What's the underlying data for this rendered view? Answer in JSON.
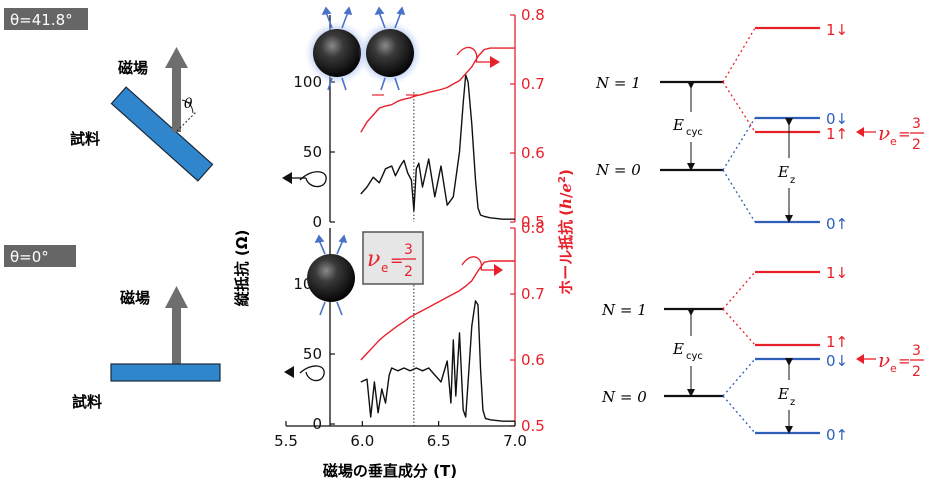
{
  "colors": {
    "red": "#e8202a",
    "blue": "#2f5fb8",
    "black": "#111111",
    "sample": "#2f86cc",
    "arrow_gray": "#6e6e6e",
    "tag_bg": "#666666"
  },
  "left": {
    "angle_top": "θ=41.8°",
    "angle_bottom": "θ=0°",
    "field_label": "磁場",
    "sample_label": "試料",
    "theta": "θ"
  },
  "axes": {
    "xlabel": "磁場の垂直成分 (T)",
    "ylabel_left": "縦抵抗 (Ω)",
    "ylabel_right_text": "ホール抵抗",
    "ylabel_right_unit_h": "h",
    "ylabel_right_unit_e": "e",
    "ylabel_right_unit_sup": "2",
    "nu_box": {
      "nu": "ν",
      "sub": "e",
      "eq": "=",
      "num": "3",
      "den": "2"
    }
  },
  "chart_data": [
    {
      "type": "line",
      "panel": "top",
      "xlim": [
        5.5,
        7.0
      ],
      "ylim_left": [
        0,
        120
      ],
      "ylim_right": [
        0.5,
        0.8
      ],
      "x_ticks": [
        "5.5",
        "6.0",
        "6.5",
        "7.0"
      ],
      "yleft_ticks": [
        "0",
        "50",
        "100"
      ],
      "yright_ticks": [
        "0.5",
        "0.6",
        "0.7",
        "0.8"
      ],
      "marker_x": 6.18,
      "series": [
        {
          "axis": "left",
          "color": "#111111",
          "x": [
            5.75,
            5.8,
            5.85,
            5.9,
            5.95,
            6.0,
            6.03,
            6.07,
            6.1,
            6.13,
            6.16,
            6.18,
            6.2,
            6.22,
            6.25,
            6.3,
            6.35,
            6.4,
            6.45,
            6.5,
            6.55,
            6.58,
            6.6,
            6.62,
            6.65,
            6.68,
            6.7,
            6.72,
            6.75,
            6.8,
            6.9,
            7.0
          ],
          "y": [
            20,
            25,
            32,
            28,
            38,
            40,
            33,
            40,
            44,
            35,
            30,
            8,
            38,
            42,
            25,
            45,
            18,
            40,
            12,
            18,
            50,
            85,
            105,
            100,
            70,
            30,
            10,
            5,
            4,
            3,
            2,
            2
          ]
        },
        {
          "axis": "right",
          "color": "#e8202a",
          "x": [
            5.75,
            5.8,
            5.85,
            5.9,
            5.95,
            6.0,
            6.05,
            6.1,
            6.15,
            6.2,
            6.25,
            6.3,
            6.35,
            6.4,
            6.45,
            6.5,
            6.55,
            6.6,
            6.65,
            6.7,
            6.75,
            6.8,
            6.9,
            7.0
          ],
          "y": [
            0.63,
            0.645,
            0.655,
            0.665,
            0.668,
            0.67,
            0.675,
            0.678,
            0.68,
            0.683,
            0.685,
            0.688,
            0.69,
            0.692,
            0.695,
            0.7,
            0.705,
            0.715,
            0.725,
            0.74,
            0.75,
            0.752,
            0.752,
            0.752
          ]
        }
      ]
    },
    {
      "type": "line",
      "panel": "bottom",
      "xlim": [
        5.5,
        7.0
      ],
      "ylim_left": [
        0,
        120
      ],
      "ylim_right": [
        0.5,
        0.8
      ],
      "x_ticks": [
        "5.5",
        "6.0",
        "6.5",
        "7.0"
      ],
      "yleft_ticks": [
        "0",
        "50",
        "100"
      ],
      "yright_ticks": [
        "0.5",
        "0.6",
        "0.7",
        "0.8"
      ],
      "marker_x": 6.18,
      "series": [
        {
          "axis": "left",
          "color": "#111111",
          "x": [
            5.75,
            5.8,
            5.83,
            5.86,
            5.89,
            5.92,
            5.95,
            5.98,
            6.0,
            6.05,
            6.1,
            6.15,
            6.2,
            6.25,
            6.3,
            6.35,
            6.4,
            6.45,
            6.48,
            6.5,
            6.52,
            6.55,
            6.58,
            6.6,
            6.62,
            6.65,
            6.68,
            6.7,
            6.72,
            6.74,
            6.76,
            6.8,
            6.9,
            7.0
          ],
          "y": [
            30,
            32,
            5,
            30,
            8,
            25,
            15,
            35,
            40,
            38,
            40,
            38,
            40,
            38,
            40,
            35,
            30,
            45,
            15,
            60,
            20,
            65,
            10,
            5,
            30,
            70,
            88,
            85,
            40,
            10,
            4,
            3,
            2,
            2
          ]
        },
        {
          "axis": "right",
          "color": "#e8202a",
          "x": [
            5.75,
            5.8,
            5.85,
            5.9,
            5.95,
            6.0,
            6.05,
            6.1,
            6.15,
            6.2,
            6.25,
            6.3,
            6.35,
            6.4,
            6.45,
            6.5,
            6.55,
            6.6,
            6.65,
            6.7,
            6.75,
            6.8,
            6.9,
            7.0
          ],
          "y": [
            0.6,
            0.61,
            0.62,
            0.63,
            0.638,
            0.645,
            0.652,
            0.658,
            0.665,
            0.67,
            0.675,
            0.68,
            0.685,
            0.69,
            0.695,
            0.7,
            0.705,
            0.712,
            0.72,
            0.735,
            0.748,
            0.75,
            0.75,
            0.75
          ]
        }
      ]
    }
  ],
  "levels": {
    "top": {
      "n1": "N = 1",
      "n0": "N = 0",
      "ecyc": "E",
      "ecyc_sub": "cyc",
      "ez": "E",
      "ez_sub": "z",
      "right_labels": [
        "1↓",
        "0↓",
        "1↑",
        "0↑"
      ],
      "nu": {
        "nu": "ν",
        "sub": "e",
        "eq": "=",
        "num": "3",
        "den": "2"
      }
    },
    "bottom": {
      "n1": "N = 1",
      "n0": "N = 0",
      "ecyc": "E",
      "ecyc_sub": "cyc",
      "ez": "E",
      "ez_sub": "z",
      "right_labels": [
        "1↓",
        "1↑",
        "0↓",
        "0↑"
      ],
      "nu": {
        "nu": "ν",
        "sub": "e",
        "eq": "=",
        "num": "3",
        "den": "2"
      }
    }
  }
}
